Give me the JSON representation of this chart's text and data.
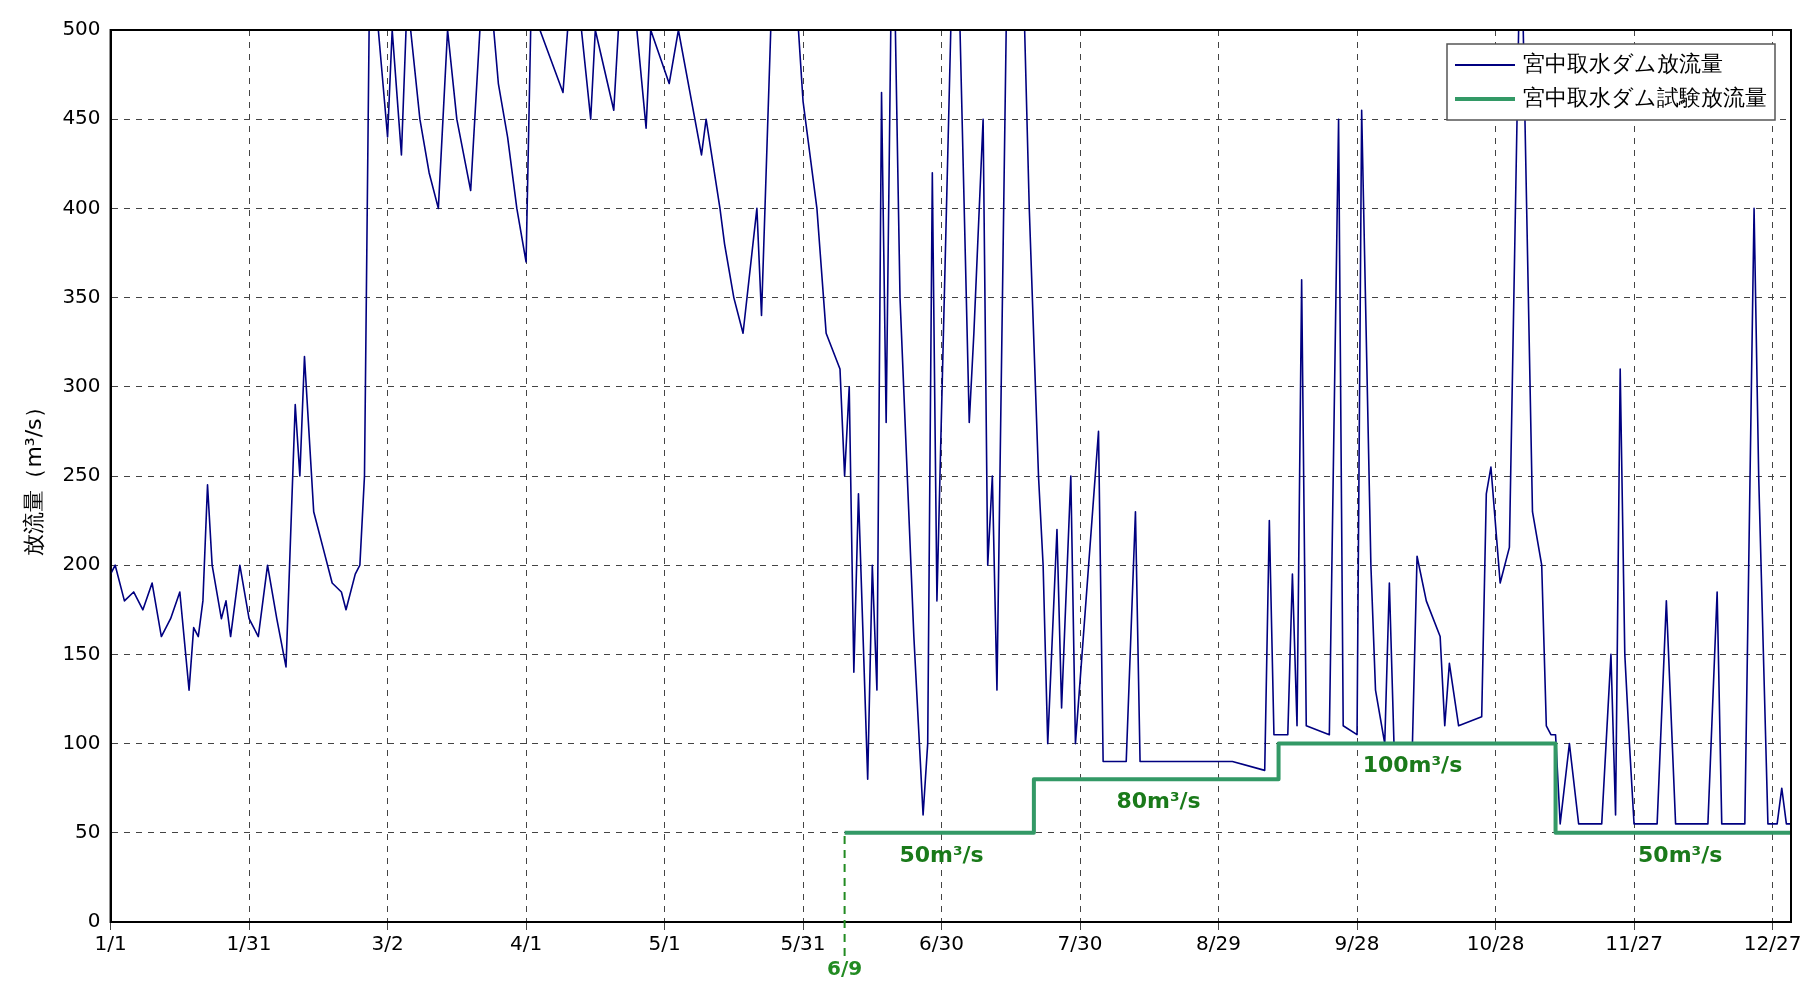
{
  "chart_data": {
    "type": "line",
    "ylabel": "放流量（m³/s）",
    "xlim": [
      "--01-01",
      "--12-31"
    ],
    "xticks": [
      {
        "value": "--01-01",
        "label": "1/1"
      },
      {
        "value": "--01-31",
        "label": "1/31"
      },
      {
        "value": "--03-02",
        "label": "3/2"
      },
      {
        "value": "--04-01",
        "label": "4/1"
      },
      {
        "value": "--05-01",
        "label": "5/1"
      },
      {
        "value": "--05-31",
        "label": "5/31"
      },
      {
        "value": "--06-30",
        "label": "6/30"
      },
      {
        "value": "--07-30",
        "label": "7/30"
      },
      {
        "value": "--08-29",
        "label": "8/29"
      },
      {
        "value": "--09-28",
        "label": "9/28"
      },
      {
        "value": "--10-28",
        "label": "10/28"
      },
      {
        "value": "--11-27",
        "label": "11/27"
      },
      {
        "value": "--12-27",
        "label": "12/27"
      }
    ],
    "ylim": [
      0,
      500
    ],
    "yticks": [
      0,
      50,
      100,
      150,
      200,
      250,
      300,
      350,
      400,
      450,
      500
    ],
    "grid": true,
    "legend": "top right",
    "marker": "none",
    "series": [
      {
        "name": "宮中取水ダム放流量",
        "color": "#000080",
        "x": [
          "--01-01",
          "--01-02",
          "--01-04",
          "--01-06",
          "--01-08",
          "--01-10",
          "--01-12",
          "--01-14",
          "--01-16",
          "--01-18",
          "--01-19",
          "--01-20",
          "--01-21",
          "--01-22",
          "--01-23",
          "--01-25",
          "--01-26",
          "--01-27",
          "--01-29",
          "--01-31",
          "--02-02",
          "--02-04",
          "--02-06",
          "--02-08",
          "--02-10",
          "--02-11",
          "--02-12",
          "--02-14",
          "--02-16",
          "--02-18",
          "--02-20",
          "--02-21",
          "--02-23",
          "--02-24",
          "--02-25",
          "--02-26",
          "--02-28",
          "--03-02",
          "--03-03",
          "--03-05",
          "--03-06",
          "--03-07",
          "--03-09",
          "--03-11",
          "--03-13",
          "--03-15",
          "--03-17",
          "--03-20",
          "--03-22",
          "--03-25",
          "--03-26",
          "--03-28",
          "--03-30",
          "--04-01",
          "--04-02",
          "--04-04",
          "--04-09",
          "--04-10",
          "--04-13",
          "--04-15",
          "--04-16",
          "--04-20",
          "--04-21",
          "--04-25",
          "--04-27",
          "--04-28",
          "--05-02",
          "--05-04",
          "--05-09",
          "--05-10",
          "--05-13",
          "--05-14",
          "--05-16",
          "--05-18",
          "--05-21",
          "--05-22",
          "--05-24",
          "--05-30",
          "--05-31",
          "--06-03",
          "--06-05",
          "--06-08",
          "--06-09",
          "--06-10",
          "--06-11",
          "--06-12",
          "--06-14",
          "--06-15",
          "--06-16",
          "--06-17",
          "--06-18",
          "--06-19",
          "--06-20",
          "--06-21",
          "--06-24",
          "--06-26",
          "--06-27",
          "--06-28",
          "--06-29",
          "--07-02",
          "--07-04",
          "--07-06",
          "--07-07",
          "--07-09",
          "--07-10",
          "--07-11",
          "--07-12",
          "--07-14",
          "--07-18",
          "--07-19",
          "--07-21",
          "--07-22",
          "--07-23",
          "--07-25",
          "--07-26",
          "--07-28",
          "--07-29",
          "--08-03",
          "--08-04",
          "--08-09",
          "--08-11",
          "--08-12",
          "--08-25",
          "--09-01",
          "--09-08",
          "--09-09",
          "--09-10",
          "--09-13",
          "--09-14",
          "--09-15",
          "--09-16",
          "--09-17",
          "--09-22",
          "--09-24",
          "--09-25",
          "--09-28",
          "--09-29",
          "--10-01",
          "--10-02",
          "--10-04",
          "--10-05",
          "--10-06",
          "--10-10",
          "--10-11",
          "--10-13",
          "--10-16",
          "--10-17",
          "--10-18",
          "--10-20",
          "--10-25",
          "--10-26",
          "--10-27",
          "--10-29",
          "--10-31",
          "--11-02",
          "--11-03",
          "--11-05",
          "--11-07",
          "--11-08",
          "--11-09",
          "--11-10",
          "--11-11",
          "--11-13",
          "--11-15",
          "--11-20",
          "--11-22",
          "--11-23",
          "--11-24",
          "--11-25",
          "--11-26",
          "--11-27",
          "--12-02",
          "--12-04",
          "--12-06",
          "--12-13",
          "--12-15",
          "--12-16",
          "--12-21",
          "--12-23",
          "--12-24",
          "--12-26",
          "--12-28",
          "--12-29",
          "--12-30",
          "--12-31"
        ],
        "values": [
          195,
          200,
          180,
          185,
          175,
          190,
          160,
          170,
          185,
          130,
          165,
          160,
          180,
          245,
          200,
          170,
          180,
          160,
          200,
          170,
          160,
          200,
          170,
          143,
          290,
          250,
          317,
          230,
          210,
          190,
          185,
          175,
          195,
          200,
          250,
          500,
          500,
          440,
          500,
          430,
          500,
          500,
          450,
          420,
          400,
          500,
          450,
          410,
          500,
          500,
          470,
          440,
          400,
          370,
          500,
          500,
          465,
          500,
          500,
          450,
          500,
          455,
          500,
          500,
          445,
          500,
          470,
          500,
          430,
          450,
          400,
          380,
          350,
          330,
          400,
          340,
          500,
          500,
          460,
          400,
          330,
          310,
          250,
          300,
          140,
          240,
          80,
          200,
          130,
          465,
          280,
          500,
          500,
          350,
          160,
          60,
          100,
          420,
          180,
          500,
          500,
          280,
          330,
          450,
          200,
          250,
          130,
          500,
          500,
          400,
          250,
          200,
          100,
          220,
          120,
          250,
          100,
          275,
          90,
          90,
          230,
          90,
          90,
          90,
          85,
          225,
          105,
          105,
          195,
          110,
          360,
          110,
          105,
          450,
          110,
          105,
          455,
          200,
          130,
          100,
          190,
          100,
          100,
          205,
          180,
          160,
          110,
          145,
          110,
          115,
          240,
          255,
          190,
          210,
          500,
          500,
          230,
          200,
          110,
          105,
          105,
          55,
          100,
          55,
          55,
          150,
          60,
          310,
          150,
          100,
          55,
          55,
          180,
          55,
          55,
          185,
          55,
          55,
          400,
          250,
          55,
          55,
          75,
          55,
          55
        ]
      },
      {
        "name": "宮中取水ダム試験放流量",
        "color": "#339966",
        "type": "step",
        "x": [
          "--06-09",
          "--07-20",
          "--09-11",
          "--11-10",
          "--12-31"
        ],
        "values": [
          50,
          80,
          100,
          50,
          50
        ]
      }
    ],
    "ref_lines": [
      {
        "axis": "x",
        "value": "--06-09",
        "label": "6/9",
        "color": "#228B22",
        "line_style": "dashed"
      }
    ],
    "annotations": [
      {
        "text": "50m³/s",
        "x": "--06-30",
        "y": 50
      },
      {
        "text": "80m³/s",
        "x": "--08-16",
        "y": 80
      },
      {
        "text": "100m³/s",
        "x": "--10-10",
        "y": 100
      },
      {
        "text": "50m³/s",
        "x": "--12-07",
        "y": 50
      }
    ]
  }
}
